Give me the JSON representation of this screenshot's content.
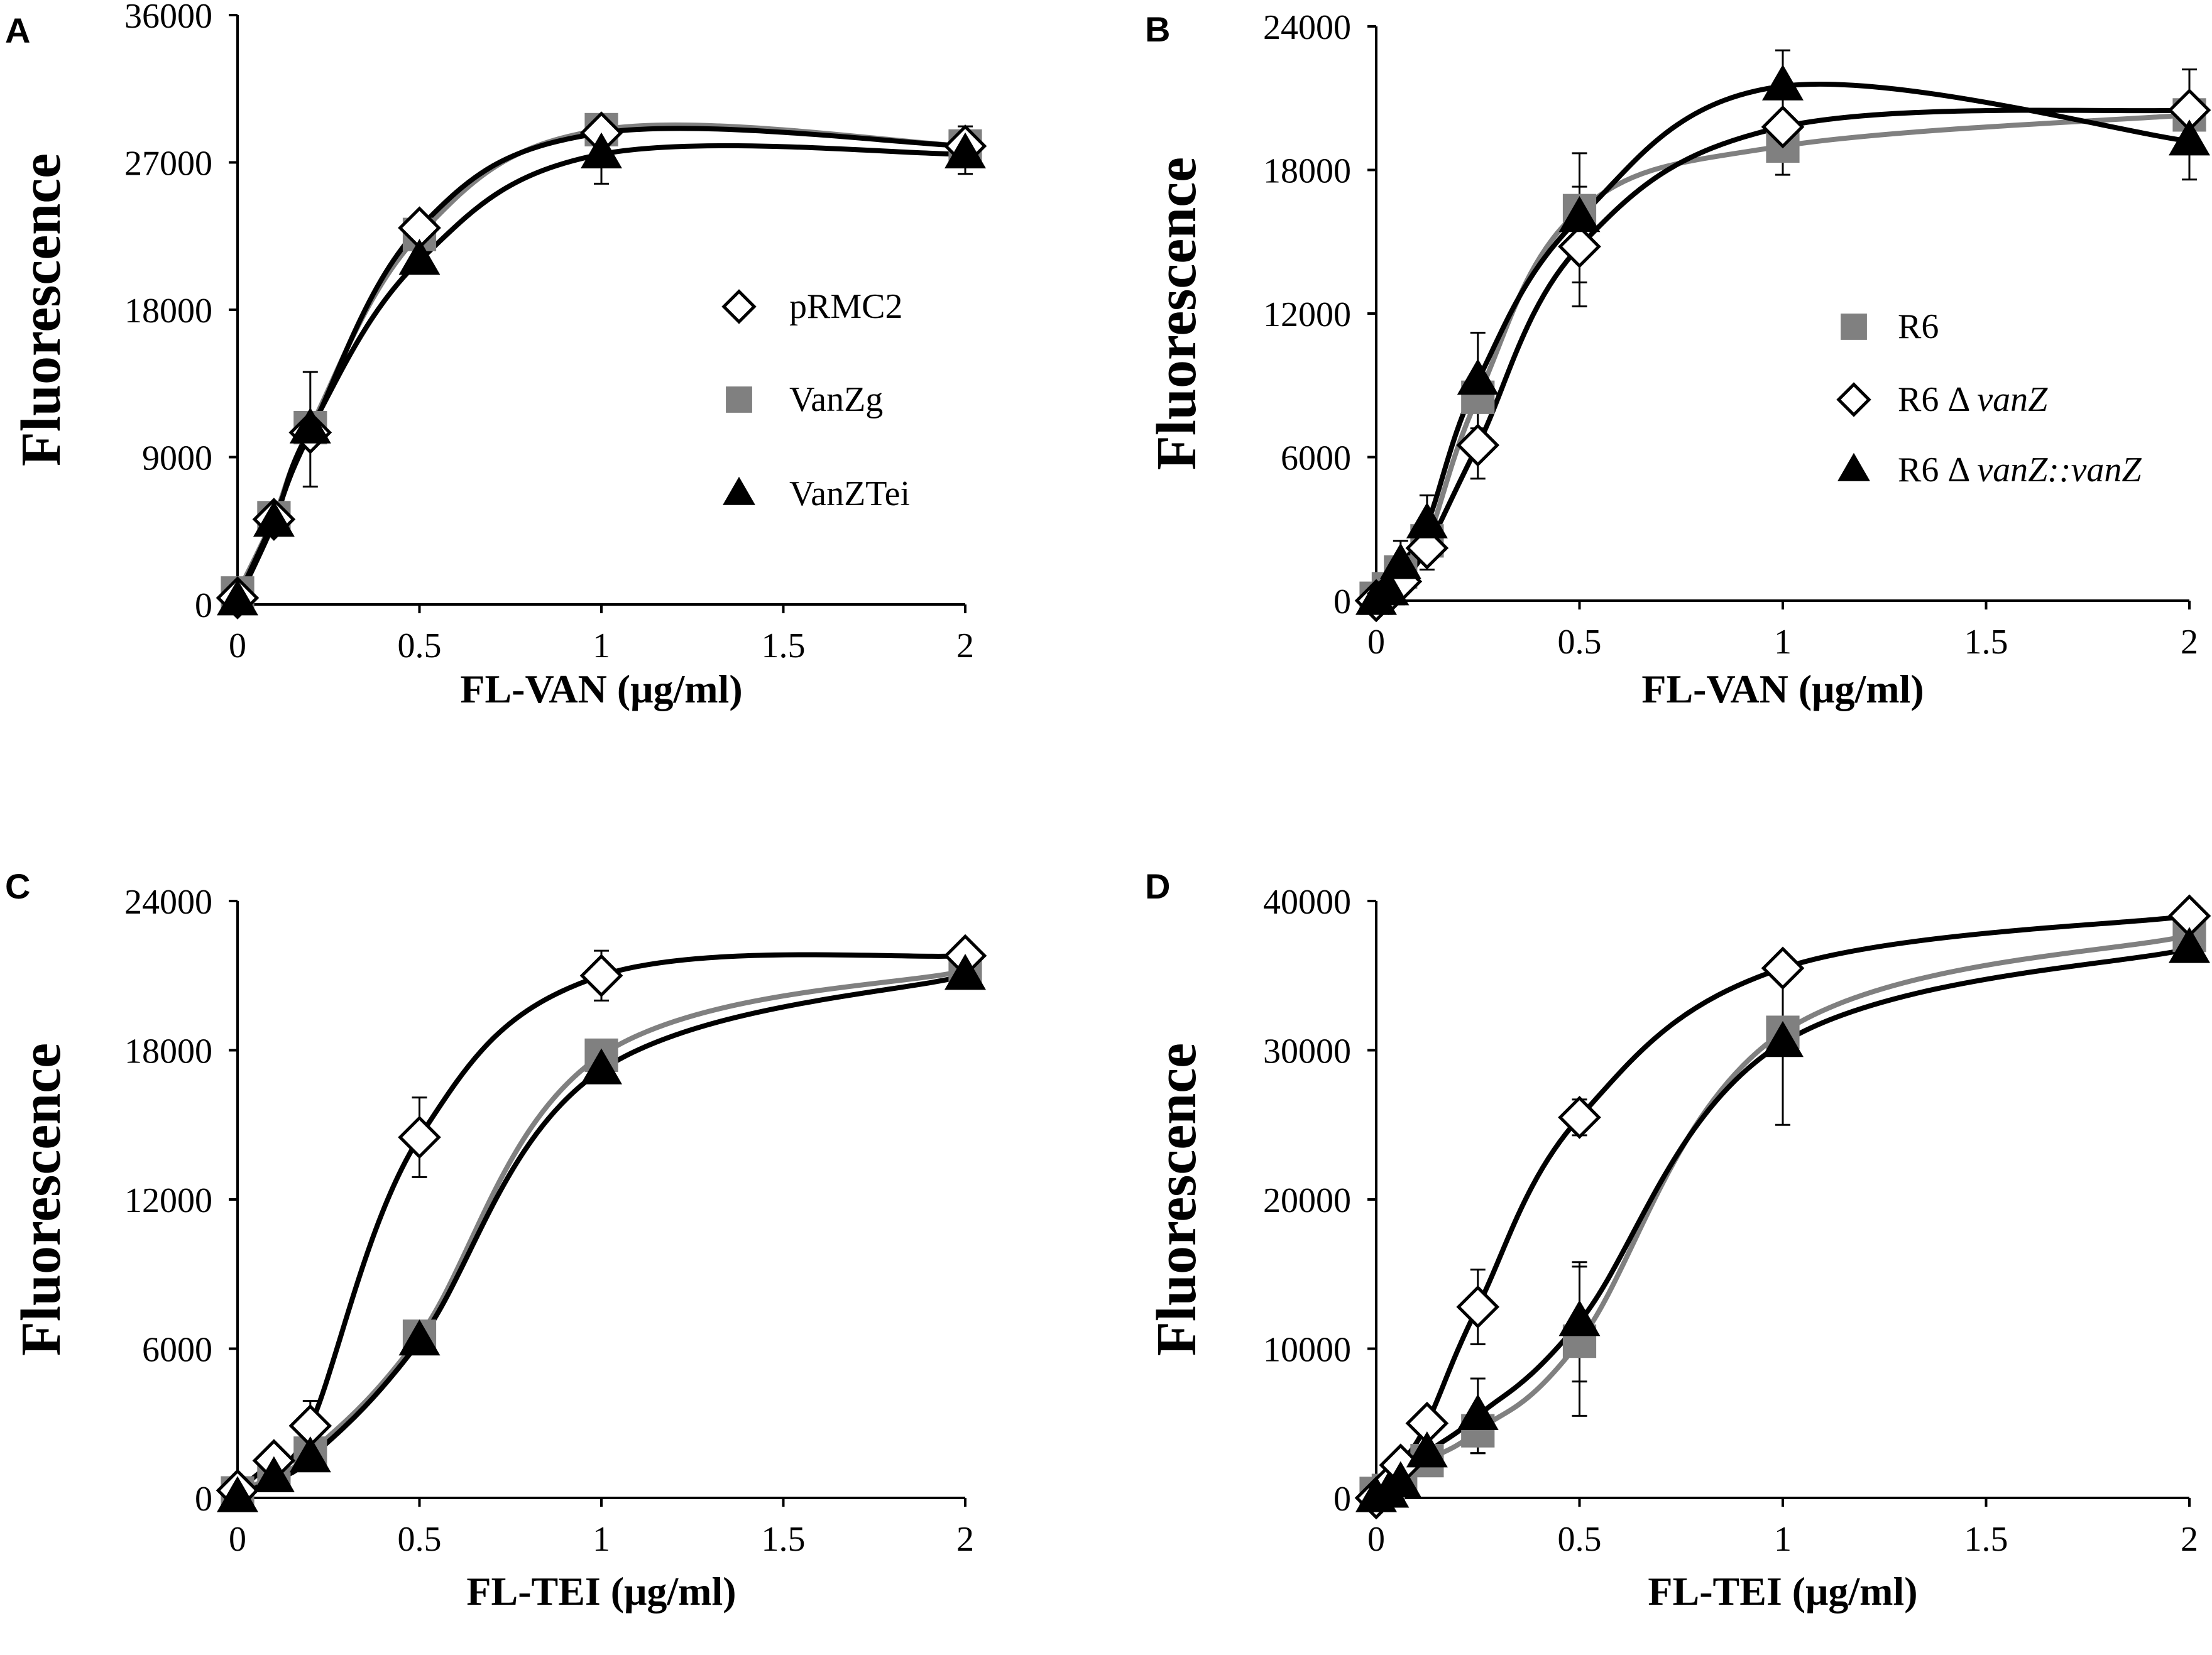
{
  "figure": {
    "panels": [
      {
        "letter": "A",
        "ylabel": "Fluorescence",
        "xlabel": "FL-VAN (μg/ml)",
        "ylim": [
          0,
          36000
        ],
        "yticks": [
          0,
          9000,
          18000,
          27000,
          36000
        ],
        "xlim": [
          0,
          2
        ],
        "xticks": [
          0,
          0.5,
          1,
          1.5,
          2
        ],
        "legend": [
          {
            "label": "pRMC2",
            "marker": "diamond-open"
          },
          {
            "label": "VanZg",
            "marker": "square-gray"
          },
          {
            "label": "VanZTei",
            "marker": "triangle-black"
          }
        ]
      },
      {
        "letter": "B",
        "ylabel": "Fluorescence",
        "xlabel": "FL-VAN (μg/ml)",
        "ylim": [
          0,
          24000
        ],
        "yticks": [
          0,
          6000,
          12000,
          18000,
          24000
        ],
        "xlim": [
          0,
          2
        ],
        "xticks": [
          0,
          0.5,
          1,
          1.5,
          2
        ],
        "legend": [
          {
            "label": "R6",
            "marker": "square-gray"
          },
          {
            "label_prefix": "R6 Δ ",
            "label_italic": "vanZ",
            "marker": "diamond-open"
          },
          {
            "label_prefix": "R6 Δ ",
            "label_italic": "vanZ::vanZ",
            "marker": "triangle-black"
          }
        ]
      },
      {
        "letter": "C",
        "ylabel": "Fluorescence",
        "xlabel": "FL-TEI (μg/ml)",
        "ylim": [
          0,
          24000
        ],
        "yticks": [
          0,
          6000,
          12000,
          18000,
          24000
        ],
        "xlim": [
          0,
          2
        ],
        "xticks": [
          0,
          0.5,
          1,
          1.5,
          2
        ]
      },
      {
        "letter": "D",
        "ylabel": "Fluorescence",
        "xlabel": "FL-TEI (μg/ml)",
        "ylim": [
          0,
          40000
        ],
        "yticks": [
          0,
          10000,
          20000,
          30000,
          40000
        ],
        "xlim": [
          0,
          2
        ],
        "xticks": [
          0,
          0.5,
          1,
          1.5,
          2
        ]
      }
    ]
  },
  "chart_data": [
    {
      "type": "line",
      "panel": "A",
      "title": "",
      "xlabel": "FL-VAN (μg/ml)",
      "ylabel": "Fluorescence",
      "ylim": [
        0,
        36000
      ],
      "series": [
        {
          "name": "pRMC2",
          "marker": "diamond-open",
          "color": "#000000",
          "x": [
            0,
            0.1,
            0.2,
            0.5,
            1,
            2
          ],
          "y": [
            400,
            5200,
            10500,
            23000,
            28800,
            28000
          ],
          "err": [
            0,
            0,
            0,
            0,
            0,
            1200
          ]
        },
        {
          "name": "VanZg",
          "marker": "square-gray",
          "color": "#808080",
          "x": [
            0,
            0.1,
            0.2,
            0.5,
            1,
            2
          ],
          "y": [
            700,
            5300,
            10800,
            22600,
            29000,
            28000
          ],
          "err": [
            0,
            0,
            0,
            0,
            0,
            0
          ]
        },
        {
          "name": "VanZTei",
          "marker": "triangle-black",
          "color": "#000000",
          "x": [
            0,
            0.1,
            0.2,
            0.5,
            1,
            2
          ],
          "y": [
            200,
            5000,
            10700,
            21000,
            27500,
            27500
          ],
          "err": [
            0,
            0,
            3500,
            0,
            1800,
            1200
          ]
        }
      ]
    },
    {
      "type": "line",
      "panel": "B",
      "title": "",
      "xlabel": "FL-VAN (μg/ml)",
      "ylabel": "Fluorescence",
      "ylim": [
        0,
        24000
      ],
      "series": [
        {
          "name": "R6",
          "marker": "square-gray",
          "color": "#808080",
          "x": [
            0,
            0.03,
            0.06,
            0.125,
            0.25,
            0.5,
            1,
            2
          ],
          "y": [
            100,
            500,
            1200,
            2500,
            8500,
            16300,
            19000,
            20300
          ],
          "err": [
            0,
            0,
            0,
            0,
            0,
            0,
            1200,
            0
          ]
        },
        {
          "name": "R6 Δ vanZ",
          "marker": "diamond-open",
          "color": "#000000",
          "x": [
            0,
            0.03,
            0.06,
            0.125,
            0.25,
            0.5,
            1,
            2
          ],
          "y": [
            0,
            300,
            800,
            2200,
            6500,
            14800,
            19800,
            20500
          ],
          "err": [
            0,
            0,
            0,
            900,
            1400,
            2500,
            0,
            1700
          ]
        },
        {
          "name": "R6 Δ vanZ::vanZ",
          "marker": "triangle-black",
          "color": "#000000",
          "x": [
            0,
            0.03,
            0.06,
            0.125,
            0.25,
            0.5,
            1,
            2
          ],
          "y": [
            0,
            400,
            1500,
            3200,
            9200,
            16000,
            21500,
            19200
          ],
          "err": [
            0,
            0,
            1000,
            1200,
            2000,
            2700,
            1500,
            1600
          ]
        }
      ]
    },
    {
      "type": "line",
      "panel": "C",
      "title": "",
      "xlabel": "FL-TEI (μg/ml)",
      "ylabel": "Fluorescence",
      "ylim": [
        0,
        24000
      ],
      "series": [
        {
          "name": "pRMC2",
          "marker": "diamond-open",
          "color": "#000000",
          "x": [
            0,
            0.1,
            0.2,
            0.5,
            1,
            2
          ],
          "y": [
            300,
            1500,
            2900,
            14500,
            21000,
            21800
          ],
          "err": [
            0,
            0,
            1000,
            1600,
            1000,
            0
          ]
        },
        {
          "name": "VanZg",
          "marker": "square-gray",
          "color": "#808080",
          "x": [
            0,
            0.1,
            0.2,
            0.5,
            1,
            2
          ],
          "y": [
            200,
            900,
            1800,
            6500,
            17800,
            21200
          ],
          "err": [
            0,
            0,
            0,
            0,
            0,
            0
          ]
        },
        {
          "name": "VanZTei",
          "marker": "triangle-black",
          "color": "#000000",
          "x": [
            0,
            0.1,
            0.2,
            0.5,
            1,
            2
          ],
          "y": [
            0,
            800,
            1600,
            6300,
            17200,
            21000
          ],
          "err": [
            0,
            0,
            0,
            0,
            0,
            0
          ]
        }
      ]
    },
    {
      "type": "line",
      "panel": "D",
      "title": "",
      "xlabel": "FL-TEI (μg/ml)",
      "ylabel": "Fluorescence",
      "ylim": [
        0,
        40000
      ],
      "series": [
        {
          "name": "R6",
          "marker": "square-gray",
          "color": "#808080",
          "x": [
            0,
            0.03,
            0.06,
            0.125,
            0.25,
            0.5,
            1,
            2
          ],
          "y": [
            300,
            500,
            1200,
            2500,
            4500,
            10500,
            31200,
            37700
          ],
          "err": [
            0,
            0,
            0,
            0,
            1500,
            5000,
            0,
            0
          ]
        },
        {
          "name": "R6 Δ vanZ",
          "marker": "diamond-open",
          "color": "#000000",
          "x": [
            0,
            0.03,
            0.06,
            0.125,
            0.25,
            0.5,
            1,
            2
          ],
          "y": [
            0,
            800,
            2200,
            5000,
            12800,
            25500,
            35500,
            39000
          ],
          "err": [
            0,
            0,
            0,
            0,
            2500,
            1200,
            0,
            0
          ]
        },
        {
          "name": "R6 Δ vanZ::vanZ",
          "marker": "triangle-black",
          "color": "#000000",
          "x": [
            0,
            0.03,
            0.06,
            0.125,
            0.25,
            0.5,
            1,
            2
          ],
          "y": [
            0,
            300,
            1000,
            3000,
            5500,
            11800,
            30500,
            36800
          ],
          "err": [
            0,
            0,
            0,
            0,
            2500,
            4000,
            5500,
            0
          ]
        }
      ]
    }
  ]
}
